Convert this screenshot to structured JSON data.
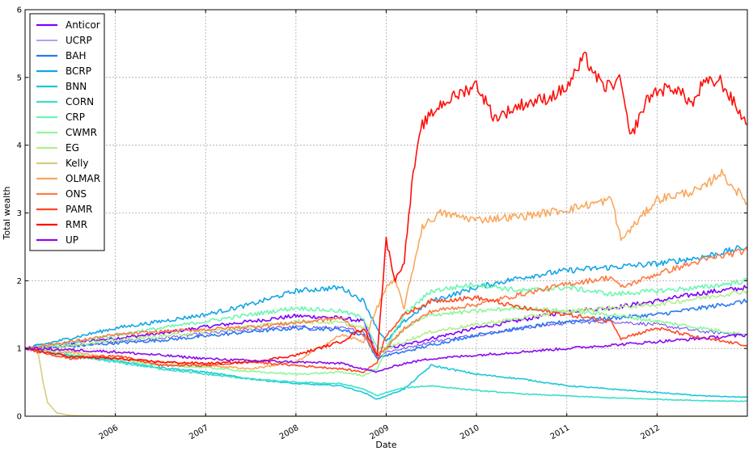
{
  "chart_data": {
    "type": "line",
    "title": "",
    "xlabel": "Date",
    "ylabel": "Total wealth",
    "xlim": [
      2005.0,
      2013.0
    ],
    "ylim": [
      0,
      6
    ],
    "grid": true,
    "legend_placement": "top-left",
    "x_ticks": [
      2006,
      2007,
      2008,
      2009,
      2010,
      2011,
      2012
    ],
    "x_tick_labels": [
      "2006",
      "2007",
      "2008",
      "2009",
      "2010",
      "2011",
      "2012"
    ],
    "y_ticks": [
      0,
      1,
      2,
      3,
      4,
      5,
      6
    ],
    "y_tick_labels": [
      "0",
      "1",
      "2",
      "3",
      "4",
      "5",
      "6"
    ],
    "series": [
      {
        "name": "Anticor",
        "color": "#7f00ff",
        "x": [
          2005.0,
          2005.5,
          2006.0,
          2006.5,
          2007.0,
          2007.5,
          2008.0,
          2008.5,
          2008.75,
          2008.9,
          2009.0,
          2009.2,
          2009.5,
          2010.0,
          2010.5,
          2011.0,
          2011.5,
          2012.0,
          2012.5,
          2013.0
        ],
        "y": [
          1.0,
          1.08,
          1.15,
          1.22,
          1.32,
          1.4,
          1.48,
          1.45,
          1.4,
          0.9,
          1.0,
          1.05,
          1.15,
          1.3,
          1.42,
          1.55,
          1.6,
          1.7,
          1.82,
          1.9
        ]
      },
      {
        "name": "UCRP",
        "color": "#6a3df5",
        "x": [
          2005.0,
          2005.5,
          2006.0,
          2006.5,
          2007.0,
          2007.5,
          2008.0,
          2008.5,
          2008.75,
          2008.9,
          2009.0,
          2009.2,
          2009.5,
          2010.0,
          2010.5,
          2011.0,
          2011.5,
          2012.0,
          2012.5,
          2013.0
        ],
        "y": [
          1.0,
          1.04,
          1.1,
          1.15,
          1.22,
          1.28,
          1.32,
          1.3,
          1.25,
          0.85,
          0.95,
          1.0,
          1.1,
          1.2,
          1.3,
          1.38,
          1.4,
          1.35,
          1.25,
          1.2
        ]
      },
      {
        "name": "BAH",
        "color": "#2a7af0",
        "x": [
          2005.0,
          2005.5,
          2006.0,
          2006.5,
          2007.0,
          2007.5,
          2008.0,
          2008.5,
          2008.75,
          2008.9,
          2009.0,
          2009.2,
          2009.5,
          2010.0,
          2010.5,
          2011.0,
          2011.5,
          2012.0,
          2012.5,
          2013.0
        ],
        "y": [
          1.0,
          1.03,
          1.08,
          1.12,
          1.18,
          1.25,
          1.3,
          1.28,
          1.2,
          0.85,
          0.9,
          0.95,
          1.05,
          1.2,
          1.3,
          1.4,
          1.45,
          1.5,
          1.6,
          1.7
        ]
      },
      {
        "name": "BCRP",
        "color": "#12a6e6",
        "x": [
          2005.0,
          2005.5,
          2006.0,
          2006.5,
          2007.0,
          2007.5,
          2008.0,
          2008.5,
          2008.75,
          2008.9,
          2009.0,
          2009.2,
          2009.5,
          2010.0,
          2010.5,
          2011.0,
          2011.5,
          2012.0,
          2012.5,
          2013.0
        ],
        "y": [
          1.0,
          1.15,
          1.3,
          1.4,
          1.5,
          1.65,
          1.85,
          1.9,
          1.7,
          1.3,
          1.1,
          1.4,
          1.7,
          1.9,
          2.05,
          2.15,
          2.2,
          2.25,
          2.35,
          2.5
        ]
      },
      {
        "name": "BNN",
        "color": "#1ac8db",
        "x": [
          2005.0,
          2005.5,
          2006.0,
          2006.5,
          2007.0,
          2007.5,
          2008.0,
          2008.5,
          2008.75,
          2008.9,
          2009.0,
          2009.2,
          2009.5,
          2010.0,
          2010.5,
          2011.0,
          2011.5,
          2012.0,
          2012.5,
          2013.0
        ],
        "y": [
          1.0,
          0.9,
          0.82,
          0.72,
          0.65,
          0.55,
          0.48,
          0.45,
          0.35,
          0.25,
          0.3,
          0.4,
          0.75,
          0.62,
          0.55,
          0.45,
          0.4,
          0.35,
          0.3,
          0.28
        ]
      },
      {
        "name": "CORN",
        "color": "#3cdfc8",
        "x": [
          2005.0,
          2005.5,
          2006.0,
          2006.5,
          2007.0,
          2007.5,
          2008.0,
          2008.5,
          2008.75,
          2008.9,
          2009.0,
          2009.2,
          2009.5,
          2010.0,
          2010.5,
          2011.0,
          2011.5,
          2012.0,
          2012.5,
          2013.0
        ],
        "y": [
          1.0,
          0.88,
          0.8,
          0.7,
          0.62,
          0.55,
          0.5,
          0.48,
          0.4,
          0.3,
          0.35,
          0.42,
          0.45,
          0.38,
          0.33,
          0.3,
          0.27,
          0.25,
          0.23,
          0.22
        ]
      },
      {
        "name": "CRP",
        "color": "#6cf7b0",
        "x": [
          2005.0,
          2005.5,
          2006.0,
          2006.5,
          2007.0,
          2007.5,
          2008.0,
          2008.5,
          2008.75,
          2008.9,
          2009.0,
          2009.2,
          2009.5,
          2010.0,
          2010.5,
          2011.0,
          2011.5,
          2012.0,
          2012.5,
          2013.0
        ],
        "y": [
          1.0,
          1.08,
          1.2,
          1.3,
          1.4,
          1.5,
          1.6,
          1.55,
          1.45,
          1.0,
          1.0,
          1.5,
          1.85,
          1.95,
          1.85,
          1.9,
          1.8,
          1.85,
          1.9,
          2.0
        ]
      },
      {
        "name": "CWMR",
        "color": "#8ef79a",
        "x": [
          2005.0,
          2005.5,
          2006.0,
          2006.5,
          2007.0,
          2007.5,
          2008.0,
          2008.5,
          2008.75,
          2008.9,
          2009.0,
          2009.2,
          2009.5,
          2010.0,
          2010.5,
          2011.0,
          2011.5,
          2012.0,
          2012.5,
          2013.0
        ],
        "y": [
          1.0,
          0.92,
          0.85,
          0.75,
          0.72,
          0.66,
          0.62,
          0.65,
          0.6,
          0.7,
          1.0,
          1.3,
          1.5,
          1.55,
          1.6,
          1.55,
          1.5,
          1.4,
          1.3,
          1.2
        ]
      },
      {
        "name": "EG",
        "color": "#b0f08a",
        "x": [
          2005.0,
          2005.5,
          2006.0,
          2006.5,
          2007.0,
          2007.5,
          2008.0,
          2008.5,
          2008.75,
          2008.9,
          2009.0,
          2009.2,
          2009.5,
          2010.0,
          2010.5,
          2011.0,
          2011.5,
          2012.0,
          2012.5,
          2013.0
        ],
        "y": [
          1.0,
          1.05,
          1.12,
          1.18,
          1.25,
          1.32,
          1.4,
          1.38,
          1.3,
          0.92,
          1.0,
          1.1,
          1.25,
          1.35,
          1.45,
          1.55,
          1.6,
          1.65,
          1.75,
          1.85
        ]
      },
      {
        "name": "Kelly",
        "color": "#d8cc80",
        "x": [
          2005.0,
          2005.1,
          2005.15,
          2005.2,
          2005.25,
          2005.35,
          2005.5,
          2006.0,
          2013.0
        ],
        "y": [
          1.0,
          1.0,
          0.9,
          0.5,
          0.2,
          0.05,
          0.01,
          0.0,
          0.0
        ]
      },
      {
        "name": "OLMAR",
        "color": "#f9a85c",
        "x": [
          2005.0,
          2005.5,
          2006.0,
          2006.5,
          2007.0,
          2007.5,
          2008.0,
          2008.5,
          2008.75,
          2008.9,
          2009.0,
          2009.1,
          2009.2,
          2009.4,
          2009.6,
          2010.0,
          2010.5,
          2011.0,
          2011.5,
          2011.6,
          2012.0,
          2012.5,
          2012.7,
          2013.0
        ],
        "y": [
          1.0,
          0.95,
          0.85,
          0.8,
          0.75,
          0.7,
          0.8,
          1.2,
          1.1,
          1.6,
          1.9,
          2.0,
          1.6,
          2.8,
          3.0,
          2.9,
          2.95,
          3.05,
          3.2,
          2.6,
          3.2,
          3.35,
          3.6,
          3.15
        ]
      },
      {
        "name": "ONS",
        "color": "#ff7b45",
        "x": [
          2005.0,
          2005.5,
          2006.0,
          2006.5,
          2007.0,
          2007.5,
          2008.0,
          2008.5,
          2008.75,
          2008.9,
          2009.0,
          2009.2,
          2009.5,
          2010.0,
          2010.5,
          2011.0,
          2011.5,
          2011.6,
          2012.0,
          2012.5,
          2013.0
        ],
        "y": [
          1.0,
          1.1,
          1.2,
          1.25,
          1.28,
          1.32,
          1.38,
          1.45,
          1.2,
          0.9,
          1.0,
          1.3,
          1.55,
          1.65,
          1.8,
          1.95,
          2.05,
          1.9,
          2.1,
          2.3,
          2.45
        ]
      },
      {
        "name": "PAMR",
        "color": "#ff4a24",
        "x": [
          2005.0,
          2005.5,
          2006.0,
          2006.5,
          2007.0,
          2007.5,
          2008.0,
          2008.5,
          2008.75,
          2008.9,
          2009.0,
          2009.2,
          2009.5,
          2010.0,
          2010.5,
          2011.0,
          2011.5,
          2011.6,
          2012.0,
          2012.5,
          2013.0
        ],
        "y": [
          1.0,
          0.85,
          0.9,
          0.75,
          0.75,
          0.8,
          0.75,
          0.7,
          0.65,
          0.8,
          1.2,
          1.5,
          1.7,
          1.75,
          1.6,
          1.5,
          1.4,
          1.15,
          1.3,
          1.15,
          1.05
        ]
      },
      {
        "name": "RMR",
        "color": "#ff0f0a",
        "x": [
          2005.0,
          2005.5,
          2006.0,
          2006.5,
          2007.0,
          2007.5,
          2008.0,
          2008.5,
          2008.75,
          2008.9,
          2009.0,
          2009.1,
          2009.2,
          2009.3,
          2009.4,
          2009.6,
          2009.8,
          2010.0,
          2010.2,
          2010.5,
          2010.8,
          2011.0,
          2011.2,
          2011.4,
          2011.6,
          2011.7,
          2011.9,
          2012.0,
          2012.2,
          2012.4,
          2012.5,
          2012.7,
          2013.0
        ],
        "y": [
          1.0,
          0.88,
          0.85,
          0.8,
          0.78,
          0.8,
          0.9,
          1.1,
          1.3,
          0.9,
          2.6,
          2.0,
          2.3,
          3.6,
          4.3,
          4.6,
          4.75,
          4.9,
          4.4,
          4.6,
          4.7,
          4.85,
          5.3,
          4.85,
          4.95,
          4.1,
          4.7,
          4.8,
          4.85,
          4.6,
          4.9,
          4.95,
          4.3
        ]
      },
      {
        "name": "UP",
        "color": "#8a0af0",
        "x": [
          2005.0,
          2005.5,
          2006.0,
          2006.5,
          2007.0,
          2007.5,
          2008.0,
          2008.5,
          2008.75,
          2008.9,
          2009.0,
          2009.2,
          2009.5,
          2010.0,
          2010.5,
          2011.0,
          2011.5,
          2012.0,
          2012.5,
          2013.0
        ],
        "y": [
          1.0,
          0.98,
          0.95,
          0.9,
          0.85,
          0.82,
          0.8,
          0.78,
          0.7,
          0.65,
          0.7,
          0.78,
          0.85,
          0.9,
          0.95,
          1.0,
          1.05,
          1.1,
          1.15,
          1.2
        ]
      }
    ]
  }
}
